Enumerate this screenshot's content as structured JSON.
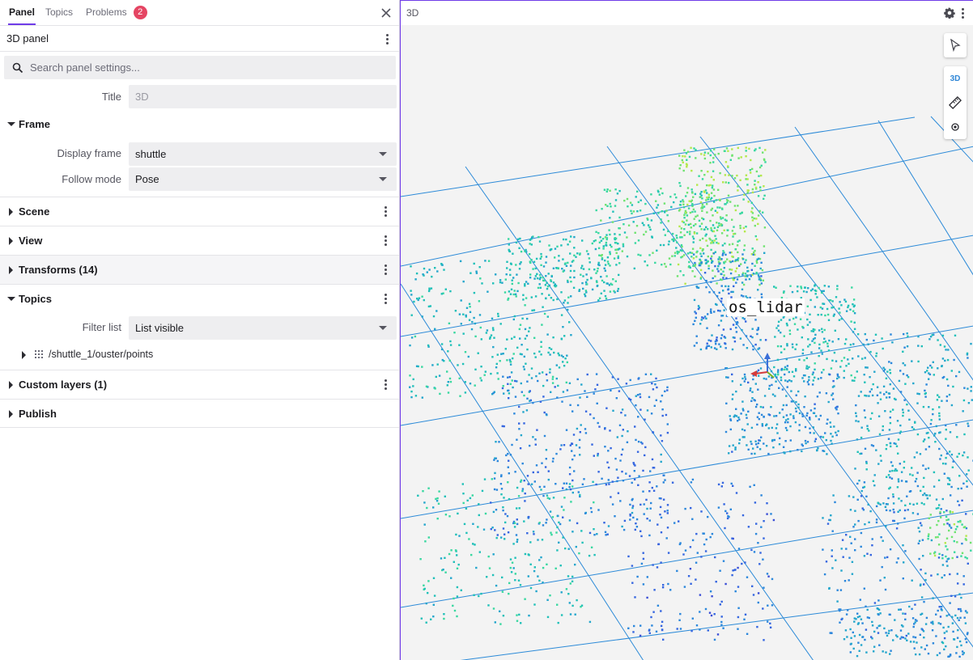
{
  "tabs": [
    {
      "label": "Panel",
      "active": true
    },
    {
      "label": "Topics",
      "active": false
    },
    {
      "label": "Problems",
      "active": false,
      "badge": "2"
    }
  ],
  "panel": {
    "title": "3D panel",
    "search_placeholder": "Search panel settings...",
    "title_label": "Title",
    "title_value": "3D"
  },
  "frame": {
    "label": "Frame",
    "display_frame_label": "Display frame",
    "display_frame_value": "shuttle",
    "follow_mode_label": "Follow mode",
    "follow_mode_value": "Pose"
  },
  "sections": {
    "scene": "Scene",
    "view": "View",
    "transforms": "Transforms (14)",
    "topics": "Topics",
    "custom_layers": "Custom layers (1)",
    "publish": "Publish"
  },
  "topics": {
    "filter_label": "Filter list",
    "filter_value": "List visible",
    "items": [
      "/shuttle_1/ouster/points"
    ]
  },
  "view3d": {
    "title": "3D",
    "mode_label": "3D",
    "frame_label": "os_lidar"
  },
  "colors": {
    "accent": "#6f3be8",
    "badge": "#e54563",
    "grid": "#2b8ad8",
    "point_high": "#4fe59a",
    "point_mid": "#23b3c6",
    "point_low": "#3a4fd6"
  },
  "icons": {
    "close": "close-icon",
    "search": "search-icon",
    "settings": "gear-icon",
    "select_tool": "cursor-icon",
    "measure_tool": "ruler-icon",
    "publish_tool": "target-icon"
  }
}
